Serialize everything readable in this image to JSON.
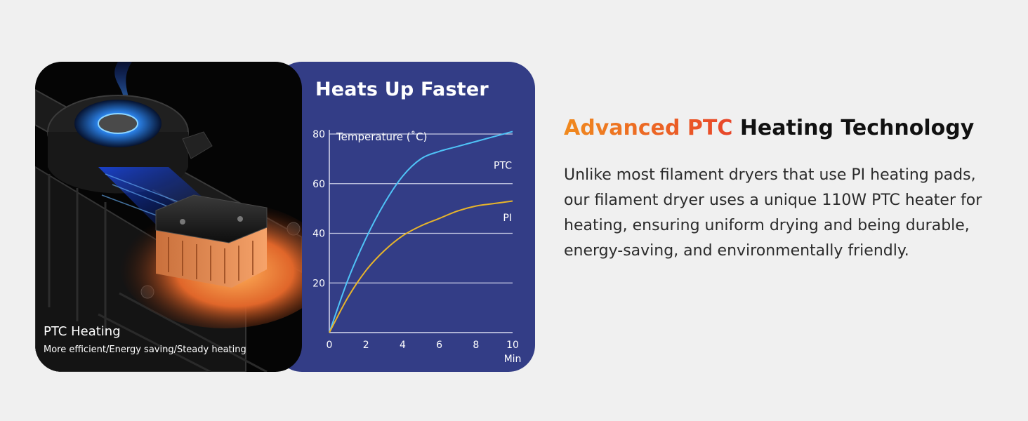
{
  "chart_data": {
    "type": "line",
    "title": "Heats Up Faster",
    "ylabel": "Temperature (˚C)",
    "xlabel": "Min",
    "xlim": [
      0,
      10
    ],
    "ylim": [
      0,
      80
    ],
    "x_ticks": [
      0,
      2,
      4,
      6,
      8,
      10
    ],
    "y_ticks": [
      20,
      40,
      60,
      80
    ],
    "grid": "horizontal",
    "series": [
      {
        "name": "PTC",
        "color": "#4fc3f7",
        "x": [
          0,
          1,
          2,
          3,
          4,
          5,
          6,
          7,
          8,
          9,
          10
        ],
        "y": [
          0,
          21,
          38,
          52,
          63,
          70,
          73,
          75,
          77,
          79,
          81
        ]
      },
      {
        "name": "PI",
        "color": "#e8b52a",
        "x": [
          0,
          1,
          2,
          3,
          4,
          5,
          6,
          7,
          8,
          9,
          10
        ],
        "y": [
          0,
          14,
          25,
          33,
          39,
          43,
          46,
          49,
          51,
          52,
          53
        ]
      }
    ]
  },
  "photo": {
    "caption_title": "PTC Heating",
    "caption_subtitle": "More efficient/Energy saving/Steady heating"
  },
  "info": {
    "heading_accent": "Advanced PTC",
    "heading_rest": " Heating Technology",
    "body": "Unlike most filament dryers that use PI heating pads, our filament dryer uses a unique 110W PTC heater for heating, ensuring uniform drying and being durable, energy-saving, and environmentally friendly."
  }
}
